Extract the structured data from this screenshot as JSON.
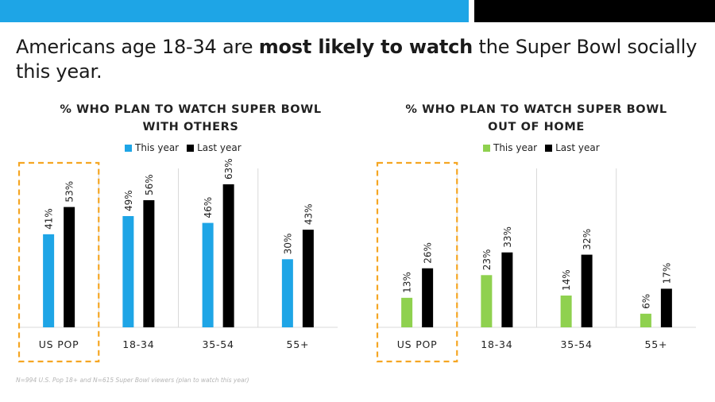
{
  "headline": {
    "part1": "Americans age 18-34 are ",
    "bold": "most likely to watch",
    "part2": " the Super Bowl socially this year."
  },
  "colors": {
    "top_band_blue": "#1ea5e6",
    "top_band_black": "#000000",
    "highlight_border": "#f5a623"
  },
  "footnote": "N=994 U.S. Pop 18+ and N=615 Super Bowl viewers (plan to watch this year)",
  "chart_data": [
    {
      "type": "bar",
      "title_line1": "% WHO PLAN TO WATCH SUPER BOWL",
      "title_line2": "WITH OTHERS",
      "categories": [
        "US POP",
        "18-34",
        "35-54",
        "55+"
      ],
      "series": [
        {
          "name": "This year",
          "color": "#1ea5e6",
          "values": [
            41,
            49,
            46,
            30
          ],
          "labels": [
            "41%",
            "49%",
            "46%",
            "30%"
          ]
        },
        {
          "name": "Last year",
          "color": "#000000",
          "values": [
            53,
            56,
            63,
            43
          ],
          "labels": [
            "53%",
            "56%",
            "63%",
            "43%"
          ]
        }
      ],
      "ylim": [
        0,
        70
      ],
      "highlight_category": "US POP",
      "legend_position": "top-center",
      "grid": false
    },
    {
      "type": "bar",
      "title_line1": "% WHO PLAN TO WATCH SUPER BOWL",
      "title_line2": "OUT OF HOME",
      "categories": [
        "US POP",
        "18-34",
        "35-54",
        "55+"
      ],
      "series": [
        {
          "name": "This year",
          "color": "#8fd14f",
          "values": [
            13,
            23,
            14,
            6
          ],
          "labels": [
            "13%",
            "23%",
            "14%",
            "6%"
          ]
        },
        {
          "name": "Last year",
          "color": "#000000",
          "values": [
            26,
            33,
            32,
            17
          ],
          "labels": [
            "26%",
            "33%",
            "32%",
            "17%"
          ]
        }
      ],
      "ylim": [
        0,
        70
      ],
      "highlight_category": "US POP",
      "legend_position": "top-center",
      "grid": false
    }
  ]
}
